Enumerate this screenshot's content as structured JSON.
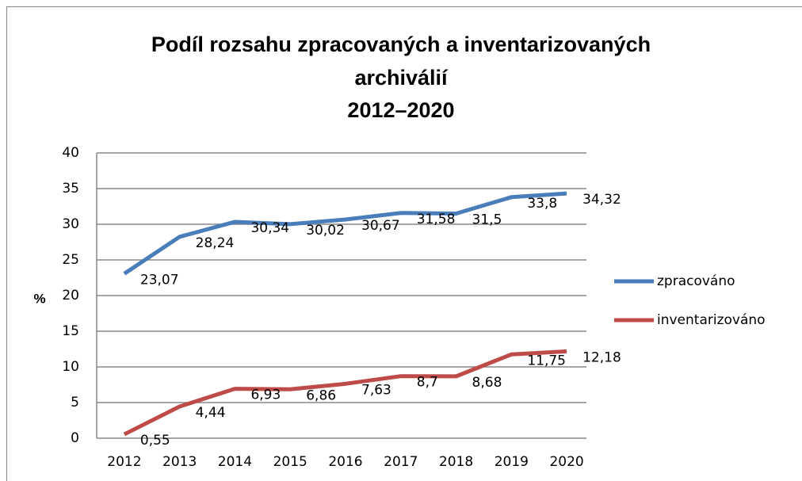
{
  "chart_data": {
    "type": "line",
    "title": [
      "Podíl rozsahu zpracovaných a inventarizovaných",
      "archiválií",
      "2012–2020"
    ],
    "ylabel": "%",
    "categories": [
      "2012",
      "2013",
      "2014",
      "2015",
      "2016",
      "2017",
      "2018",
      "2019",
      "2020"
    ],
    "series": [
      {
        "name": "zpracováno",
        "color": "#4a7ebb",
        "values": [
          23.07,
          28.24,
          30.34,
          30.02,
          30.67,
          31.58,
          31.5,
          33.8,
          34.32
        ],
        "value_labels": [
          "23,07",
          "28,24",
          "30,34",
          "30,02",
          "30,67",
          "31,58",
          "31,5",
          "33,8",
          "34,32"
        ]
      },
      {
        "name": "inventarizováno",
        "color": "#be4b48",
        "values": [
          0.55,
          4.44,
          6.93,
          6.86,
          7.63,
          8.7,
          8.68,
          11.75,
          12.18
        ],
        "value_labels": [
          "0,55",
          "4,44",
          "6,93",
          "6,86",
          "7,63",
          "8,7",
          "8,68",
          "11,75",
          "12,18"
        ]
      }
    ],
    "ylim": [
      0,
      40
    ],
    "yticks": [
      0,
      5,
      10,
      15,
      20,
      25,
      30,
      35,
      40
    ],
    "grid": true,
    "legend": "right"
  }
}
